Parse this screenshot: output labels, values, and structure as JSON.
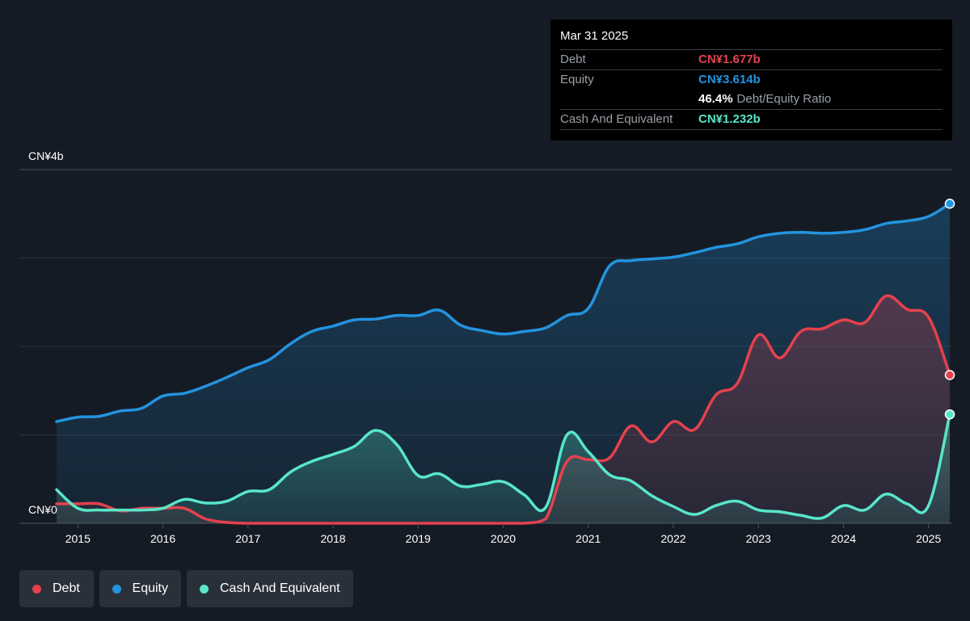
{
  "tooltip": {
    "date": "Mar 31 2025",
    "debt_label": "Debt",
    "debt_value": "CN¥1.677b",
    "equity_label": "Equity",
    "equity_value": "CN¥3.614b",
    "ratio_pct": "46.4%",
    "ratio_label": "Debt/Equity Ratio",
    "cash_label": "Cash And Equivalent",
    "cash_value": "CN¥1.232b"
  },
  "legend": [
    {
      "label": "Debt",
      "color": "#e5414d"
    },
    {
      "label": "Equity",
      "color": "#2394df"
    },
    {
      "label": "Cash And Equivalent",
      "color": "#58e6c9"
    }
  ],
  "chart_data": {
    "type": "area",
    "y_top_label": "CN¥4b",
    "y_zero_label": "CN¥0",
    "ylim": [
      0,
      4
    ],
    "xlim": [
      2014.75,
      2025.25
    ],
    "x_ticks": [
      "2015",
      "2016",
      "2017",
      "2018",
      "2019",
      "2020",
      "2021",
      "2022",
      "2023",
      "2024",
      "2025"
    ],
    "grid": true,
    "series": [
      {
        "name": "Equity",
        "color": "#2394df",
        "points": [
          [
            2014.75,
            1.15
          ],
          [
            2015.0,
            1.2
          ],
          [
            2015.25,
            1.21
          ],
          [
            2015.5,
            1.27
          ],
          [
            2015.75,
            1.3
          ],
          [
            2016.0,
            1.44
          ],
          [
            2016.25,
            1.47
          ],
          [
            2016.5,
            1.55
          ],
          [
            2016.75,
            1.65
          ],
          [
            2017.0,
            1.76
          ],
          [
            2017.25,
            1.85
          ],
          [
            2017.5,
            2.03
          ],
          [
            2017.75,
            2.17
          ],
          [
            2018.0,
            2.23
          ],
          [
            2018.25,
            2.3
          ],
          [
            2018.5,
            2.31
          ],
          [
            2018.75,
            2.35
          ],
          [
            2019.0,
            2.35
          ],
          [
            2019.25,
            2.41
          ],
          [
            2019.5,
            2.24
          ],
          [
            2019.75,
            2.18
          ],
          [
            2020.0,
            2.14
          ],
          [
            2020.25,
            2.17
          ],
          [
            2020.5,
            2.21
          ],
          [
            2020.75,
            2.35
          ],
          [
            2021.0,
            2.43
          ],
          [
            2021.25,
            2.91
          ],
          [
            2021.5,
            2.97
          ],
          [
            2021.75,
            2.99
          ],
          [
            2022.0,
            3.01
          ],
          [
            2022.25,
            3.06
          ],
          [
            2022.5,
            3.12
          ],
          [
            2022.75,
            3.16
          ],
          [
            2023.0,
            3.24
          ],
          [
            2023.25,
            3.28
          ],
          [
            2023.5,
            3.29
          ],
          [
            2023.75,
            3.28
          ],
          [
            2024.0,
            3.29
          ],
          [
            2024.25,
            3.32
          ],
          [
            2024.5,
            3.39
          ],
          [
            2024.75,
            3.42
          ],
          [
            2025.0,
            3.47
          ],
          [
            2025.25,
            3.614
          ]
        ]
      },
      {
        "name": "Debt",
        "color": "#e5414d",
        "points": [
          [
            2014.75,
            0.22
          ],
          [
            2015.0,
            0.22
          ],
          [
            2015.25,
            0.22
          ],
          [
            2015.5,
            0.14
          ],
          [
            2015.75,
            0.17
          ],
          [
            2016.0,
            0.17
          ],
          [
            2016.25,
            0.17
          ],
          [
            2016.5,
            0.05
          ],
          [
            2016.75,
            0.01
          ],
          [
            2017.0,
            0.0
          ],
          [
            2017.25,
            0.0
          ],
          [
            2017.5,
            0.0
          ],
          [
            2017.75,
            0.0
          ],
          [
            2018.0,
            0.0
          ],
          [
            2018.25,
            0.0
          ],
          [
            2018.5,
            0.0
          ],
          [
            2018.75,
            0.0
          ],
          [
            2019.0,
            0.0
          ],
          [
            2019.25,
            0.0
          ],
          [
            2019.5,
            0.0
          ],
          [
            2019.75,
            0.0
          ],
          [
            2020.0,
            0.0
          ],
          [
            2020.25,
            0.0
          ],
          [
            2020.5,
            0.05
          ],
          [
            2020.75,
            0.7
          ],
          [
            2021.0,
            0.72
          ],
          [
            2021.25,
            0.74
          ],
          [
            2021.5,
            1.1
          ],
          [
            2021.75,
            0.92
          ],
          [
            2022.0,
            1.15
          ],
          [
            2022.25,
            1.06
          ],
          [
            2022.5,
            1.45
          ],
          [
            2022.75,
            1.58
          ],
          [
            2023.0,
            2.13
          ],
          [
            2023.25,
            1.87
          ],
          [
            2023.5,
            2.17
          ],
          [
            2023.75,
            2.2
          ],
          [
            2024.0,
            2.3
          ],
          [
            2024.25,
            2.27
          ],
          [
            2024.5,
            2.57
          ],
          [
            2024.75,
            2.42
          ],
          [
            2025.0,
            2.33
          ],
          [
            2025.25,
            1.677
          ]
        ]
      },
      {
        "name": "Cash And Equivalent",
        "color": "#58e6c9",
        "points": [
          [
            2014.75,
            0.38
          ],
          [
            2015.0,
            0.17
          ],
          [
            2015.25,
            0.15
          ],
          [
            2015.5,
            0.15
          ],
          [
            2015.75,
            0.15
          ],
          [
            2016.0,
            0.17
          ],
          [
            2016.25,
            0.27
          ],
          [
            2016.5,
            0.23
          ],
          [
            2016.75,
            0.25
          ],
          [
            2017.0,
            0.36
          ],
          [
            2017.25,
            0.38
          ],
          [
            2017.5,
            0.58
          ],
          [
            2017.75,
            0.7
          ],
          [
            2018.0,
            0.78
          ],
          [
            2018.25,
            0.87
          ],
          [
            2018.5,
            1.05
          ],
          [
            2018.75,
            0.89
          ],
          [
            2019.0,
            0.54
          ],
          [
            2019.25,
            0.56
          ],
          [
            2019.5,
            0.42
          ],
          [
            2019.75,
            0.44
          ],
          [
            2020.0,
            0.47
          ],
          [
            2020.25,
            0.32
          ],
          [
            2020.5,
            0.18
          ],
          [
            2020.75,
            1.0
          ],
          [
            2021.0,
            0.81
          ],
          [
            2021.25,
            0.55
          ],
          [
            2021.5,
            0.48
          ],
          [
            2021.75,
            0.31
          ],
          [
            2022.0,
            0.19
          ],
          [
            2022.25,
            0.1
          ],
          [
            2022.5,
            0.2
          ],
          [
            2022.75,
            0.25
          ],
          [
            2023.0,
            0.15
          ],
          [
            2023.25,
            0.13
          ],
          [
            2023.5,
            0.09
          ],
          [
            2023.75,
            0.06
          ],
          [
            2024.0,
            0.2
          ],
          [
            2024.25,
            0.15
          ],
          [
            2024.5,
            0.33
          ],
          [
            2024.75,
            0.22
          ],
          [
            2025.0,
            0.2
          ],
          [
            2025.25,
            1.232
          ]
        ]
      }
    ]
  }
}
